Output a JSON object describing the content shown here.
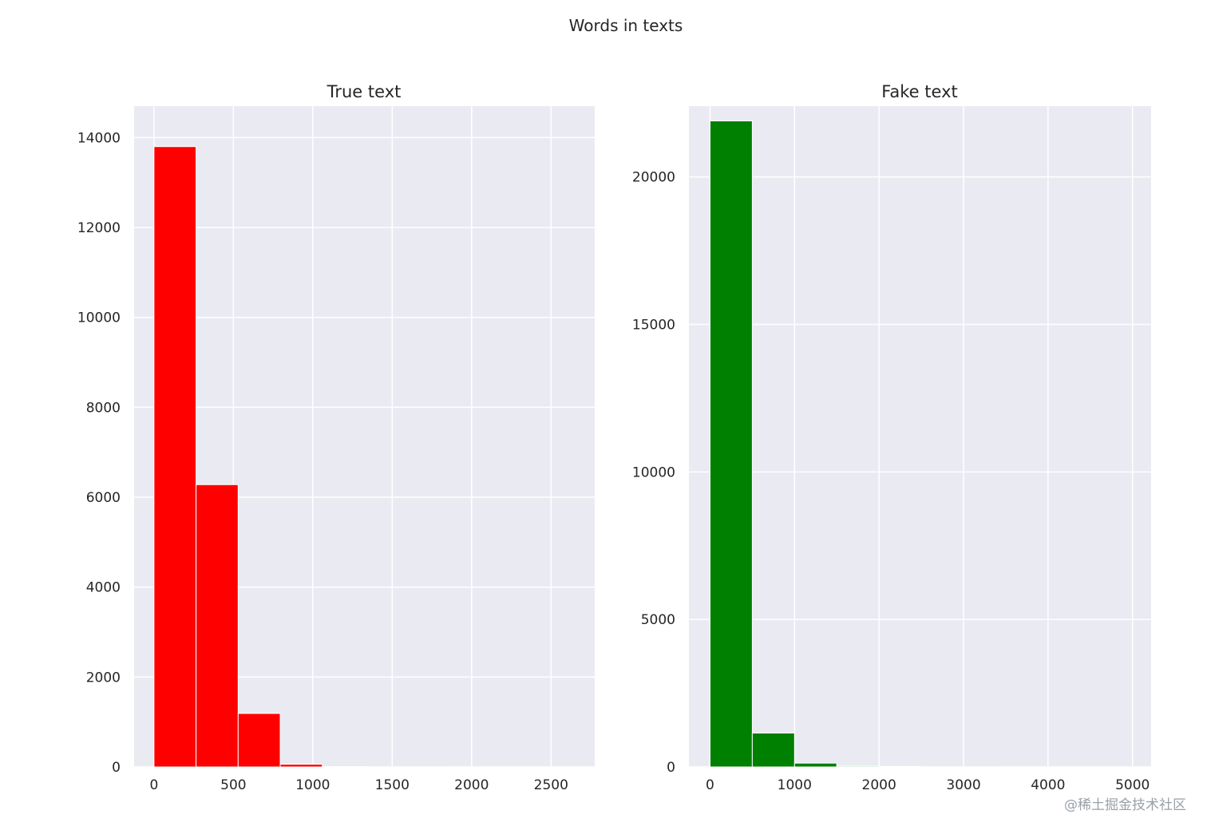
{
  "figure": {
    "title": "Words in texts",
    "watermark": "@稀土掘金技术社区"
  },
  "chart_data": [
    {
      "type": "bar",
      "title": "True text",
      "xlabel": "",
      "ylabel": "",
      "color": "#ff0000",
      "background": "#eaeaf2",
      "grid": true,
      "xlim": [
        -125,
        2775
      ],
      "ylim": [
        0,
        14700
      ],
      "xticks": [
        0,
        500,
        1000,
        1500,
        2000,
        2500
      ],
      "yticks": [
        0,
        2000,
        4000,
        6000,
        8000,
        10000,
        12000,
        14000
      ],
      "bin_edges": [
        0,
        265,
        530,
        795,
        1060,
        1325,
        1590,
        1855,
        2120,
        2385,
        2650
      ],
      "values": [
        13800,
        6280,
        1190,
        60,
        8,
        4,
        2,
        1,
        1,
        1
      ]
    },
    {
      "type": "bar",
      "title": "Fake text",
      "xlabel": "",
      "ylabel": "",
      "color": "#008000",
      "background": "#eaeaf2",
      "grid": true,
      "xlim": [
        -250,
        5220
      ],
      "ylim": [
        0,
        22400
      ],
      "xticks": [
        0,
        1000,
        2000,
        3000,
        4000,
        5000
      ],
      "yticks": [
        0,
        5000,
        10000,
        15000,
        20000
      ],
      "bin_edges": [
        0,
        500,
        1000,
        1500,
        2000,
        2500,
        3000,
        3500,
        4000,
        4500,
        5000
      ],
      "values": [
        21900,
        1150,
        130,
        30,
        15,
        6,
        3,
        2,
        1,
        1
      ]
    }
  ]
}
